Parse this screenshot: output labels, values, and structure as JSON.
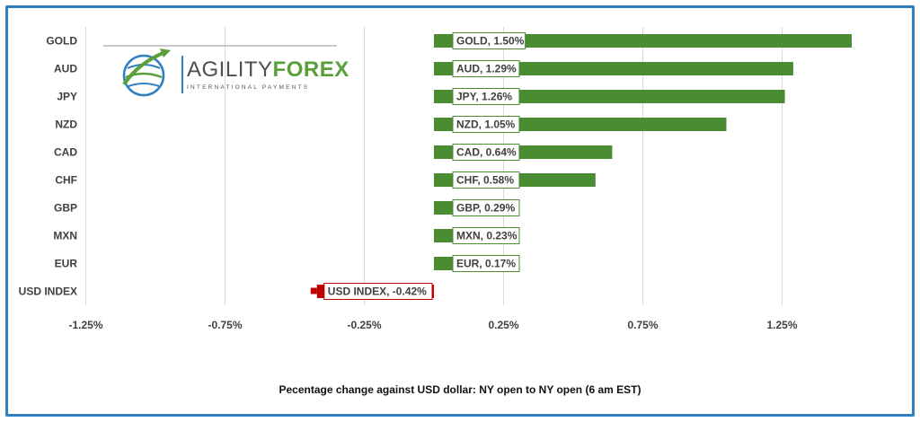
{
  "colors": {
    "positive": "#4a8c32",
    "negative": "#c00000",
    "frame": "#2f7fc1",
    "grid": "#d9d9d9"
  },
  "logo": {
    "icon": "globe-swoosh-icon",
    "word_part1": "AGILITY",
    "word_part2": "FOREX",
    "tagline": "INTERNATIONAL PAYMENTS"
  },
  "chart_data": {
    "type": "bar",
    "orientation": "horizontal",
    "categories": [
      "GOLD",
      "AUD",
      "JPY",
      "NZD",
      "CAD",
      "CHF",
      "GBP",
      "MXN",
      "EUR",
      "USD INDEX"
    ],
    "values": [
      1.5,
      1.29,
      1.26,
      1.05,
      0.64,
      0.58,
      0.29,
      0.23,
      0.17,
      -0.42
    ],
    "data_labels": [
      "GOLD, 1.50%",
      "AUD, 1.29%",
      "JPY, 1.26%",
      "NZD, 1.05%",
      "CAD, 0.64%",
      "CHF, 0.58%",
      "GBP, 0.29%",
      "MXN, 0.23%",
      "EUR, 0.17%",
      "USD INDEX, -0.42%"
    ],
    "xlim": [
      -1.25,
      1.5
    ],
    "xticks": [
      -1.25,
      -0.75,
      -0.25,
      0.25,
      0.75,
      1.25
    ],
    "xtick_labels": [
      "-1.25%",
      "-0.75%",
      "-0.25%",
      "0.25%",
      "0.75%",
      "1.25%"
    ],
    "xlabel": "Pecentage change against USD dollar:  NY open to NY open  (6 am EST)",
    "grid": "vertical",
    "legend": "none"
  }
}
